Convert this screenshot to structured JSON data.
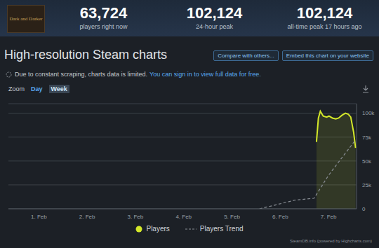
{
  "header": {
    "logo": "Dark and Darker",
    "stats": [
      {
        "value": "63,724",
        "label": "players right now"
      },
      {
        "value": "102,124",
        "label": "24-hour peak"
      },
      {
        "value": "102,124",
        "label": "all-time peak 17 hours ago"
      }
    ]
  },
  "title": "High-resolution Steam charts",
  "buttons": [
    "Compare with others...",
    "Embed this chart on your website"
  ],
  "notice": {
    "text": "Due to constant scraping, charts data is limited.",
    "link": "You can sign in to view full data for free."
  },
  "zoom": {
    "label": "Zoom",
    "options": [
      "Day",
      "Week"
    ],
    "selected": "Week"
  },
  "credit": "SteamDB.info (powered by Highcharts.com)",
  "chart_data": {
    "type": "line",
    "series": [
      {
        "name": "Players",
        "type": "area",
        "color": "#d4e829",
        "x": [
          6.75,
          6.79,
          6.83,
          6.89,
          6.96,
          7.01,
          7.08,
          7.15,
          7.21,
          7.28,
          7.35,
          7.41,
          7.46,
          7.52,
          7.56
        ],
        "values": [
          70000,
          95000,
          102124,
          97000,
          96000,
          97000,
          95000,
          94000,
          95000,
          98000,
          100000,
          99000,
          96000,
          80000,
          63724
        ]
      },
      {
        "name": "Players Trend",
        "type": "line",
        "color": "#8a8f96",
        "line_style": "dashed",
        "x": [
          5.57,
          5.9,
          6.3,
          6.7,
          7.0,
          7.3,
          7.56
        ],
        "values": [
          0,
          4000,
          9000,
          11000,
          35000,
          55000,
          72000
        ]
      }
    ],
    "xlim": [
      0.37,
      7.58
    ],
    "xticks": [
      {
        "value": 1,
        "label": "1. Feb"
      },
      {
        "value": 2,
        "label": "2. Feb"
      },
      {
        "value": 3,
        "label": "3. Feb"
      },
      {
        "value": 4,
        "label": "4. Feb"
      },
      {
        "value": 5,
        "label": "5. Feb"
      },
      {
        "value": 6,
        "label": "6. Feb"
      },
      {
        "value": 7,
        "label": "7. Feb"
      }
    ],
    "ylim": [
      0,
      110000
    ],
    "yticks": [
      0,
      {
        "value": 25000,
        "label": "25k"
      },
      {
        "value": 50000,
        "label": "50k"
      },
      {
        "value": 75000,
        "label": "75k"
      },
      {
        "value": 100000,
        "label": "100k"
      }
    ],
    "grid": true,
    "legend": "bottom"
  }
}
